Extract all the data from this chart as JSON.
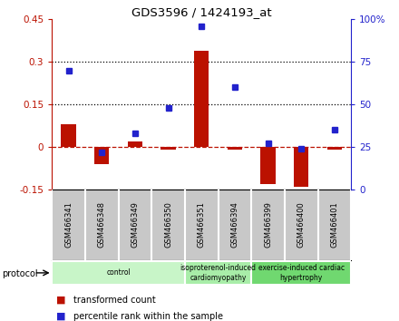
{
  "title": "GDS3596 / 1424193_at",
  "samples": [
    "GSM466341",
    "GSM466348",
    "GSM466349",
    "GSM466350",
    "GSM466351",
    "GSM466394",
    "GSM466399",
    "GSM466400",
    "GSM466401"
  ],
  "transformed_count": [
    0.08,
    -0.06,
    0.02,
    -0.01,
    0.34,
    -0.01,
    -0.13,
    -0.14,
    -0.01
  ],
  "percentile_rank": [
    70,
    22,
    33,
    48,
    96,
    60,
    27,
    24,
    35
  ],
  "groups": [
    {
      "label": "control",
      "indices": [
        0,
        1,
        2,
        3
      ],
      "color": "#c8f5c8"
    },
    {
      "label": "isoproterenol-induced\ncardiomyopathy",
      "indices": [
        4,
        5
      ],
      "color": "#a8eda8"
    },
    {
      "label": "exercise-induced cardiac\nhypertrophy",
      "indices": [
        6,
        7,
        8
      ],
      "color": "#70d870"
    }
  ],
  "bar_color": "#bb1100",
  "dot_color": "#2222cc",
  "left_ylim": [
    -0.15,
    0.45
  ],
  "right_ylim": [
    0,
    100
  ],
  "left_yticks": [
    -0.15,
    0.0,
    0.15,
    0.3,
    0.45
  ],
  "right_yticks": [
    0,
    25,
    50,
    75,
    100
  ],
  "left_ytick_labels": [
    "-0.15",
    "0",
    "0.15",
    "0.3",
    "0.45"
  ],
  "right_ytick_labels": [
    "0",
    "25",
    "50",
    "75",
    "100%"
  ],
  "hlines": [
    0.15,
    0.3
  ],
  "background_color": "#ffffff",
  "legend_items": [
    "transformed count",
    "percentile rank within the sample"
  ]
}
